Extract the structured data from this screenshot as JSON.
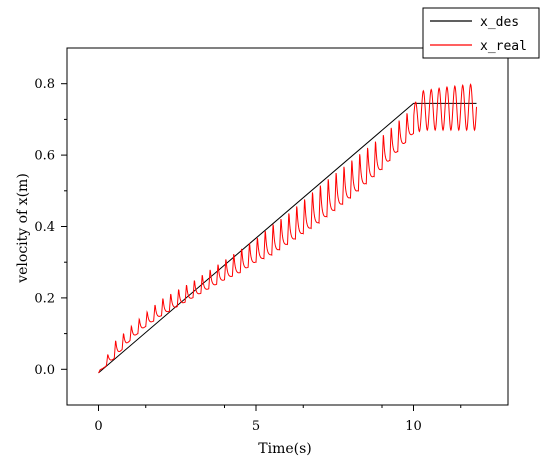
{
  "chart_data": {
    "type": "line",
    "title": "",
    "xlabel": "Time(s)",
    "ylabel": "velocity of x(m)",
    "xlim": [
      -1,
      13
    ],
    "ylim": [
      -0.1,
      0.9
    ],
    "xticks": [
      0,
      5,
      10
    ],
    "xtick_labels": [
      "0",
      "5",
      "10"
    ],
    "yticks": [
      0.0,
      0.2,
      0.4,
      0.6,
      0.8
    ],
    "ytick_labels": [
      "0.0",
      "0.2",
      "0.4",
      "0.6",
      "0.8"
    ],
    "grid": false,
    "legend": {
      "position": "top-right"
    },
    "series": [
      {
        "name": "x_des",
        "color": "#000000",
        "x": [
          0,
          10,
          12
        ],
        "y": [
          -0.01,
          0.745,
          0.745
        ]
      },
      {
        "name": "x_real",
        "color": "#ff0000",
        "oscillation_period": 0.25,
        "x": [
          0,
          0.5,
          1,
          1.5,
          2,
          3,
          4,
          4.5,
          5,
          5.5,
          6,
          7,
          8,
          9,
          9.5,
          10,
          10.3,
          11,
          12
        ],
        "y_lower": [
          -0.01,
          0.03,
          0.08,
          0.12,
          0.15,
          0.2,
          0.25,
          0.27,
          0.3,
          0.32,
          0.35,
          0.41,
          0.48,
          0.56,
          0.61,
          0.66,
          0.67,
          0.67,
          0.67
        ],
        "y_upper": [
          -0.01,
          0.08,
          0.12,
          0.16,
          0.2,
          0.25,
          0.31,
          0.34,
          0.37,
          0.41,
          0.44,
          0.52,
          0.59,
          0.66,
          0.7,
          0.74,
          0.78,
          0.79,
          0.8
        ]
      }
    ]
  }
}
